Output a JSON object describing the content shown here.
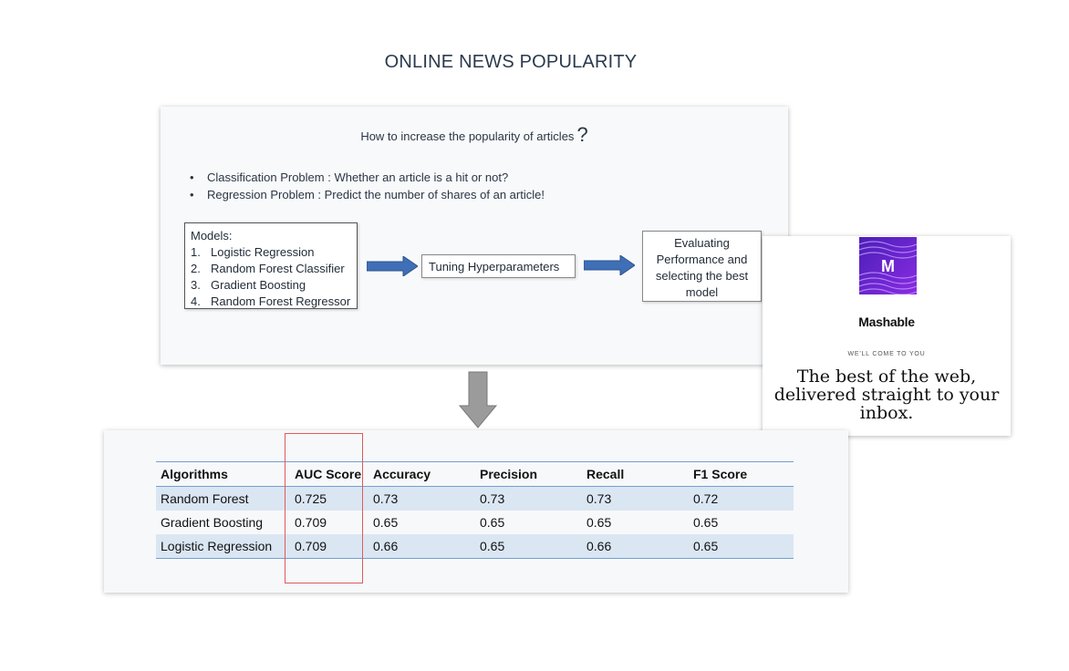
{
  "title": "ONLINE NEWS POPULARITY",
  "slide": {
    "question": "How to increase the popularity of articles",
    "question_mark": "?",
    "bullets": [
      "Classification Problem : Whether an article is a hit or not?",
      "Regression Problem : Predict the number of shares of an article!"
    ],
    "models_heading": "Models:",
    "models": [
      {
        "num": "1.",
        "name": "Logistic Regression"
      },
      {
        "num": "2.",
        "name": "Random Forest Classifier"
      },
      {
        "num": "3.",
        "name": "Gradient Boosting"
      },
      {
        "num": "4.",
        "name": "Random Forest Regressor"
      }
    ],
    "tuning": "Tuning Hyperparameters",
    "evaluation_lines": [
      "Evaluating",
      "Performance and",
      "selecting the best",
      "model"
    ]
  },
  "mashable": {
    "logo_letter": "M",
    "brand": "Mashable",
    "tagline": "WE'LL COME TO YOU",
    "headline_lines": [
      "The best of the web,",
      "delivered straight to your",
      "inbox."
    ]
  },
  "results": {
    "headers": [
      "Algorithms",
      "AUC Score",
      "Accuracy",
      "Precision",
      "Recall",
      "F1 Score"
    ],
    "rows": [
      [
        "Random Forest",
        "0.725",
        "0.73",
        "0.73",
        "0.73",
        "0.72"
      ],
      [
        "Gradient Boosting",
        "0.709",
        "0.65",
        "0.65",
        "0.65",
        "0.65"
      ],
      [
        "Logistic Regression",
        "0.709",
        "0.66",
        "0.65",
        "0.66",
        "0.65"
      ]
    ]
  },
  "colors": {
    "arrow_blue": "#3f6fb6",
    "arrow_gray": "#9b9b9b",
    "highlight_red": "#e05a5a",
    "row_stripe": "#dbe6f3",
    "logo_purple": "#6d2bd9"
  }
}
